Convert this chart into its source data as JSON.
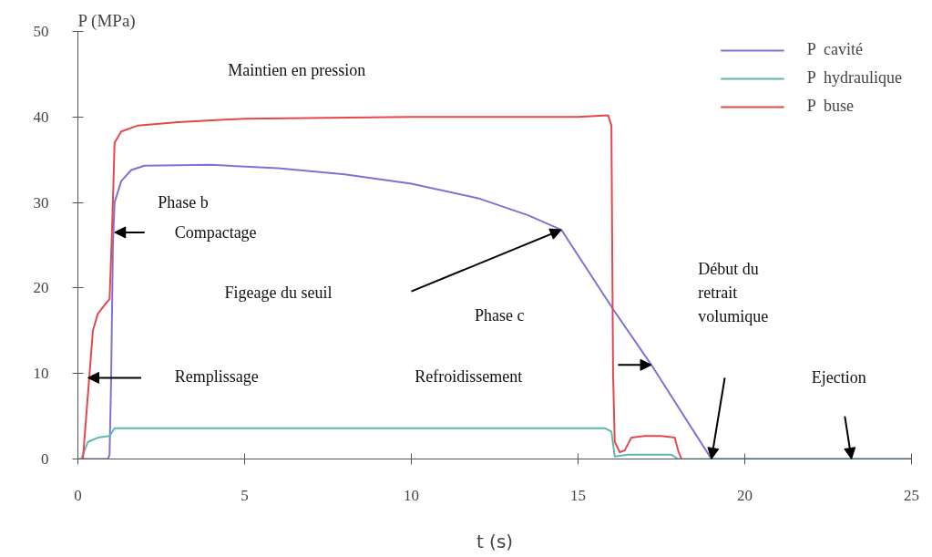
{
  "chart_data": {
    "type": "line",
    "xlabel": "t (s)",
    "ylabel": "P (MPa)",
    "xlim": [
      0,
      25
    ],
    "xticks": [
      0,
      5,
      10,
      15,
      20,
      25
    ],
    "ylim": [
      0,
      50
    ],
    "yticks": [
      0,
      10,
      20,
      30,
      40,
      50
    ],
    "grid": false,
    "legend": "top right",
    "marker": "none",
    "line_style": "solid",
    "series": [
      {
        "name": "P  cavité",
        "color": "#7b74d6",
        "x": [
          0,
          0.9,
          0.95,
          1.0,
          1.05,
          1.1,
          1.3,
          1.6,
          2.0,
          4,
          6,
          8,
          10,
          12,
          13.5,
          14.5,
          16.07,
          17.2,
          19.0,
          25
        ],
        "values": [
          0,
          0,
          0.5,
          10,
          25,
          30,
          32.5,
          33.8,
          34.3,
          34.4,
          34,
          33.3,
          32.2,
          30.5,
          28.5,
          26.8,
          17.4,
          11,
          0,
          0
        ]
      },
      {
        "name": "P  hydraulique",
        "color": "#5fb8ae",
        "x": [
          0.1,
          0.3,
          0.6,
          0.95,
          1.1,
          5,
          15.8,
          16.0,
          16.1,
          16.5,
          17.8,
          18.0,
          25
        ],
        "values": [
          0,
          2,
          2.5,
          2.7,
          3.6,
          3.6,
          3.6,
          3.2,
          0.3,
          0.5,
          0.5,
          0,
          0
        ]
      },
      {
        "name": "P  buse",
        "color": "#e8474a",
        "x": [
          0.15,
          0.25,
          0.35,
          0.45,
          0.6,
          0.8,
          0.95,
          1.0,
          1.05,
          1.1,
          1.3,
          1.8,
          3,
          5,
          10,
          15,
          15.9,
          16.0,
          16.05,
          16.1,
          16.25,
          16.4,
          16.6,
          17.0,
          17.5,
          17.9,
          18.0,
          18.1
        ],
        "values": [
          0,
          5,
          10,
          15,
          17,
          18,
          18.7,
          24,
          30,
          37,
          38.3,
          39,
          39.4,
          39.8,
          40,
          40,
          40.2,
          39,
          10,
          2,
          0.8,
          1.0,
          2.5,
          2.7,
          2.7,
          2.5,
          1,
          0
        ]
      }
    ],
    "annotations": [
      "Maintien en pression",
      "Phase b",
      "Compactage",
      "Remplissage",
      "Figeage du seuil",
      "Phase c",
      "Refroidissement",
      "Début du\nretrait\nvolumique",
      "Ejection"
    ]
  }
}
